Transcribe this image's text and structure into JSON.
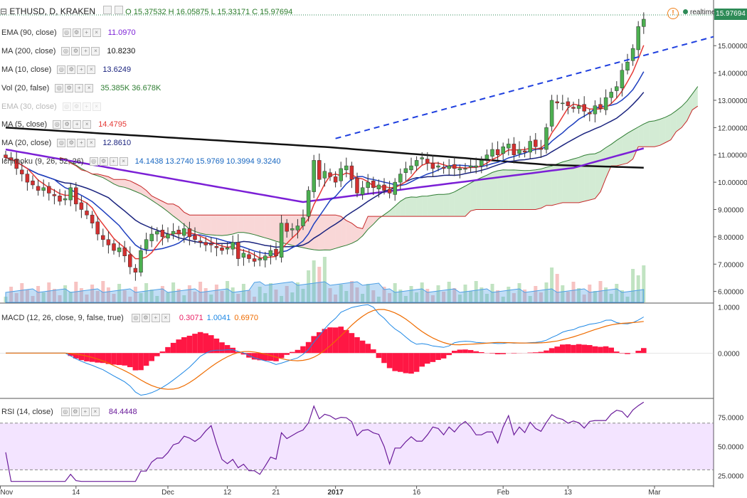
{
  "header": {
    "symbol": "ETHUSD, D, KRAKEN",
    "ohlc": "O 15.37532  H 16.05875  L 15.33171  C 15.97694",
    "realtime_label": "realtime",
    "last_price": "15.97694"
  },
  "indicators": [
    {
      "name": "EMA (90, close)",
      "value": "11.0970",
      "color": "#7b1fd6"
    },
    {
      "name": "MA (200, close)",
      "value": "10.8230",
      "color": "#111111"
    },
    {
      "name": "MA (10, close)",
      "value": "13.6249",
      "color": "#1a237e"
    },
    {
      "name": "Vol (20, false)",
      "value": "35.385K  36.678K",
      "color": "#2e7d32"
    },
    {
      "name": "EMA (30, close)",
      "value": "",
      "color": "#888888"
    },
    {
      "name": "MA (5, close)",
      "value": "14.4795",
      "color": "#e53935"
    },
    {
      "name": "MA (20, close)",
      "value": "12.8610",
      "color": "#1a237e"
    },
    {
      "name": "Ichimoku (9, 26, 52, 26)",
      "value": "14.1438  13.2740  15.9769  10.3994  9.3240",
      "color": "#1565c0"
    }
  ],
  "macd_legend": {
    "name": "MACD (12, 26, close, 9, false, true)",
    "v1": "0.3071",
    "v2": "1.0041",
    "v3": "0.6970"
  },
  "rsi_legend": {
    "name": "RSI (14, close)",
    "value": "84.4448"
  },
  "chart_data": {
    "type": "candlestick",
    "price_axis": [
      "6.00000",
      "7.00000",
      "8.00000",
      "9.00000",
      "10.00000",
      "11.00000",
      "12.00000",
      "13.00000",
      "14.00000",
      "15.00000"
    ],
    "price_range": [
      5.6,
      16.1
    ],
    "macd_axis": [
      "1.0000",
      "0.0000"
    ],
    "macd_range": [
      -0.95,
      1.05
    ],
    "rsi_axis": [
      "75.0000",
      "50.0000",
      "25.0000"
    ],
    "rsi_range": [
      18,
      90
    ],
    "rsi_band": [
      30,
      70
    ],
    "x_labels": [
      "Nov",
      "14",
      "Dec",
      "12",
      "21",
      "2017",
      "16",
      "Feb",
      "13",
      "Mar"
    ],
    "x_label_days": [
      -1,
      13,
      30,
      41,
      50,
      61,
      76,
      92,
      104,
      120
    ],
    "days": 120,
    "ohlc_sample": {
      "close": [
        10.9,
        10.8,
        10.5,
        10.3,
        10.0,
        9.9,
        9.7,
        9.8,
        9.6,
        9.5,
        9.3,
        9.4,
        9.8,
        9.2,
        9.0,
        8.8,
        8.5,
        8.1,
        7.9,
        7.7,
        7.5,
        7.6,
        7.3,
        6.9,
        6.7,
        7.5,
        7.9,
        8.1,
        8.2,
        8.0,
        8.1,
        8.2,
        8.1,
        8.3,
        8.0,
        7.9,
        7.8,
        7.7,
        7.7,
        7.6,
        7.5,
        7.6,
        7.8,
        7.2,
        7.4,
        7.2,
        7.1,
        7.2,
        7.3,
        7.5,
        7.3,
        8.5,
        8.2,
        8.3,
        8.4,
        8.7,
        9.7,
        10.8,
        10.1,
        10.4,
        10.2,
        10.0,
        10.5,
        10.6,
        10.1,
        9.6,
        9.8,
        10.0,
        9.8,
        9.9,
        9.7,
        9.6,
        10.0,
        10.3,
        10.5,
        10.6,
        10.8,
        10.9,
        10.7,
        10.5,
        10.6,
        10.5,
        10.6,
        10.5,
        10.5,
        10.5,
        10.6,
        10.6,
        10.8,
        11.0,
        11.2,
        11.0,
        11.3,
        11.4,
        11.0,
        11.2,
        11.1,
        11.5,
        11.3,
        11.2,
        12.0,
        13.0,
        12.9,
        12.9,
        12.8,
        12.7,
        12.8,
        12.6,
        12.5,
        12.8,
        12.7,
        13.1,
        13.3,
        13.5,
        14.1,
        14.4,
        14.9,
        15.7,
        15.97
      ]
    },
    "trendline": {
      "from": [
        61,
        11.6
      ],
      "to": [
        121,
        14.8
      ]
    }
  }
}
